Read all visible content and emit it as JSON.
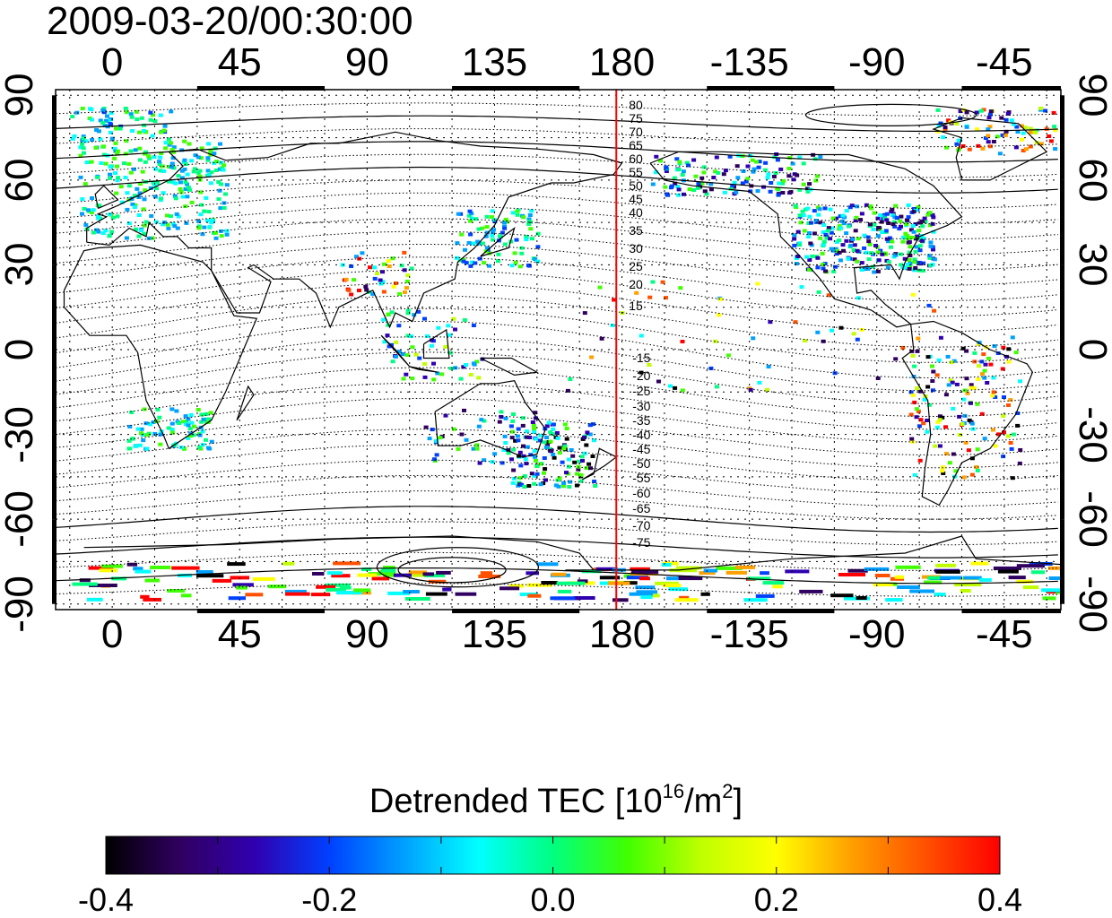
{
  "title": "2009-03-20/00:30:00",
  "map": {
    "lon_ticks": [
      "0",
      "45",
      "90",
      "135",
      "180",
      "-135",
      "-90",
      "-45"
    ],
    "lon_tick_values": [
      0,
      45,
      90,
      135,
      180,
      225,
      270,
      315
    ],
    "lat_ticks": [
      "90",
      "60",
      "30",
      "0",
      "-30",
      "-60",
      "-90"
    ],
    "lat_tick_values": [
      90,
      60,
      30,
      0,
      -30,
      -60,
      -90
    ],
    "lon_range": [
      -20,
      335
    ],
    "lat_range": [
      -92,
      92
    ],
    "terminator_lon": 178,
    "contour_labels_north": [
      "80",
      "75",
      "70",
      "65",
      "60",
      "55",
      "50",
      "45",
      "40",
      "35",
      "30",
      "25",
      "20",
      "15"
    ],
    "contour_labels_south": [
      "-15",
      "-20",
      "-25",
      "-30",
      "-35",
      "-40",
      "-45",
      "-50",
      "-55",
      "-60",
      "-65",
      "-70",
      "-75"
    ],
    "colors": {
      "terminator": "#ff0000",
      "grid": "#000000",
      "coast": "#000000"
    }
  },
  "colorbar": {
    "title_text": "Detrended TEC  [10",
    "title_exp": "16",
    "title_unit": "/m",
    "title_unit_exp": "2",
    "title_close": "]",
    "min": -0.4,
    "max": 0.4,
    "tick_labels": [
      "-0.4",
      "-0.2",
      "0.0",
      "0.2",
      "0.4"
    ],
    "tick_values": [
      -0.4,
      -0.2,
      0.0,
      0.2,
      0.4
    ],
    "stops": [
      "#000000",
      "#300060",
      "#3000b0",
      "#0040ff",
      "#00a0ff",
      "#00ffff",
      "#00ff80",
      "#40ff00",
      "#c0ff00",
      "#ffff00",
      "#ffa000",
      "#ff5000",
      "#ff0000"
    ]
  }
}
